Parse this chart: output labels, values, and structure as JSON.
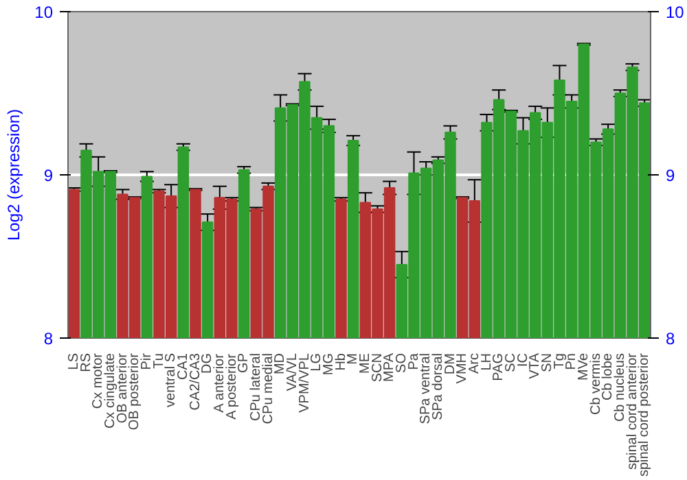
{
  "chart_data": {
    "type": "bar",
    "ylabel": "Log2 (expression)",
    "categories": [
      "LS",
      "RS",
      "Cx motor",
      "Cx cingulate",
      "OB anterior",
      "OB posterior",
      "Pir",
      "Tu",
      "ventral S",
      "CA1",
      "CA2/CA3",
      "DG",
      "A anterior",
      "A posterior",
      "GP",
      "CPu lateral",
      "CPu medial",
      "MD",
      "VA/VL",
      "VPM/VPL",
      "LG",
      "MG",
      "Hb",
      "M",
      "ME",
      "SCN",
      "MPA",
      "SO",
      "Pa",
      "SPa ventral",
      "SPa dorsal",
      "DM",
      "VMH",
      "Arc",
      "LH",
      "PAG",
      "SC",
      "IC",
      "VTA",
      "SN",
      "Tg",
      "Pn",
      "MVe",
      "Cb vermis",
      "Cb lobe",
      "Cb nucleus",
      "spinal cord anterior",
      "spinal cord posterior"
    ],
    "values": [
      8.91,
      9.15,
      9.02,
      9.02,
      8.88,
      8.86,
      8.99,
      8.9,
      8.87,
      9.17,
      8.91,
      8.71,
      8.86,
      8.85,
      9.03,
      8.79,
      8.93,
      9.41,
      9.43,
      9.57,
      9.35,
      9.3,
      8.85,
      9.21,
      8.83,
      8.79,
      8.92,
      8.45,
      9.01,
      9.04,
      9.09,
      9.26,
      8.86,
      8.84,
      9.32,
      9.46,
      9.39,
      9.27,
      9.38,
      9.32,
      9.58,
      9.45,
      9.8,
      9.2,
      9.28,
      9.5,
      9.66,
      9.44
    ],
    "errors": [
      0.01,
      0.04,
      0.09,
      0.005,
      0.03,
      0.005,
      0.03,
      0.01,
      0.07,
      0.02,
      0.005,
      0.05,
      0.07,
      0.01,
      0.02,
      0.01,
      0.02,
      0.08,
      0.005,
      0.05,
      0.07,
      0.04,
      0.01,
      0.03,
      0.06,
      0.02,
      0.04,
      0.08,
      0.13,
      0.04,
      0.02,
      0.04,
      0.005,
      0.13,
      0.05,
      0.06,
      0.005,
      0.08,
      0.04,
      0.09,
      0.09,
      0.04,
      0.005,
      0.02,
      0.03,
      0.02,
      0.02,
      0.02
    ],
    "colors": [
      "#b83232",
      "#2e9e2e",
      "#2e9e2e",
      "#2e9e2e",
      "#b83232",
      "#b83232",
      "#2e9e2e",
      "#b83232",
      "#b83232",
      "#2e9e2e",
      "#b83232",
      "#2e9e2e",
      "#b83232",
      "#b83232",
      "#2e9e2e",
      "#b83232",
      "#b83232",
      "#2e9e2e",
      "#2e9e2e",
      "#2e9e2e",
      "#2e9e2e",
      "#2e9e2e",
      "#b83232",
      "#2e9e2e",
      "#b83232",
      "#b83232",
      "#b83232",
      "#2e9e2e",
      "#2e9e2e",
      "#2e9e2e",
      "#2e9e2e",
      "#2e9e2e",
      "#b83232",
      "#b83232",
      "#2e9e2e",
      "#2e9e2e",
      "#2e9e2e",
      "#2e9e2e",
      "#2e9e2e",
      "#2e9e2e",
      "#2e9e2e",
      "#2e9e2e",
      "#2e9e2e",
      "#2e9e2e",
      "#2e9e2e",
      "#2e9e2e",
      "#2e9e2e",
      "#2e9e2e"
    ],
    "ylim": [
      8,
      10
    ],
    "yticks": [
      8,
      9,
      10
    ],
    "y2lim": [
      8,
      10
    ],
    "y2ticks": [
      8,
      9,
      10
    ],
    "grid": "y"
  }
}
